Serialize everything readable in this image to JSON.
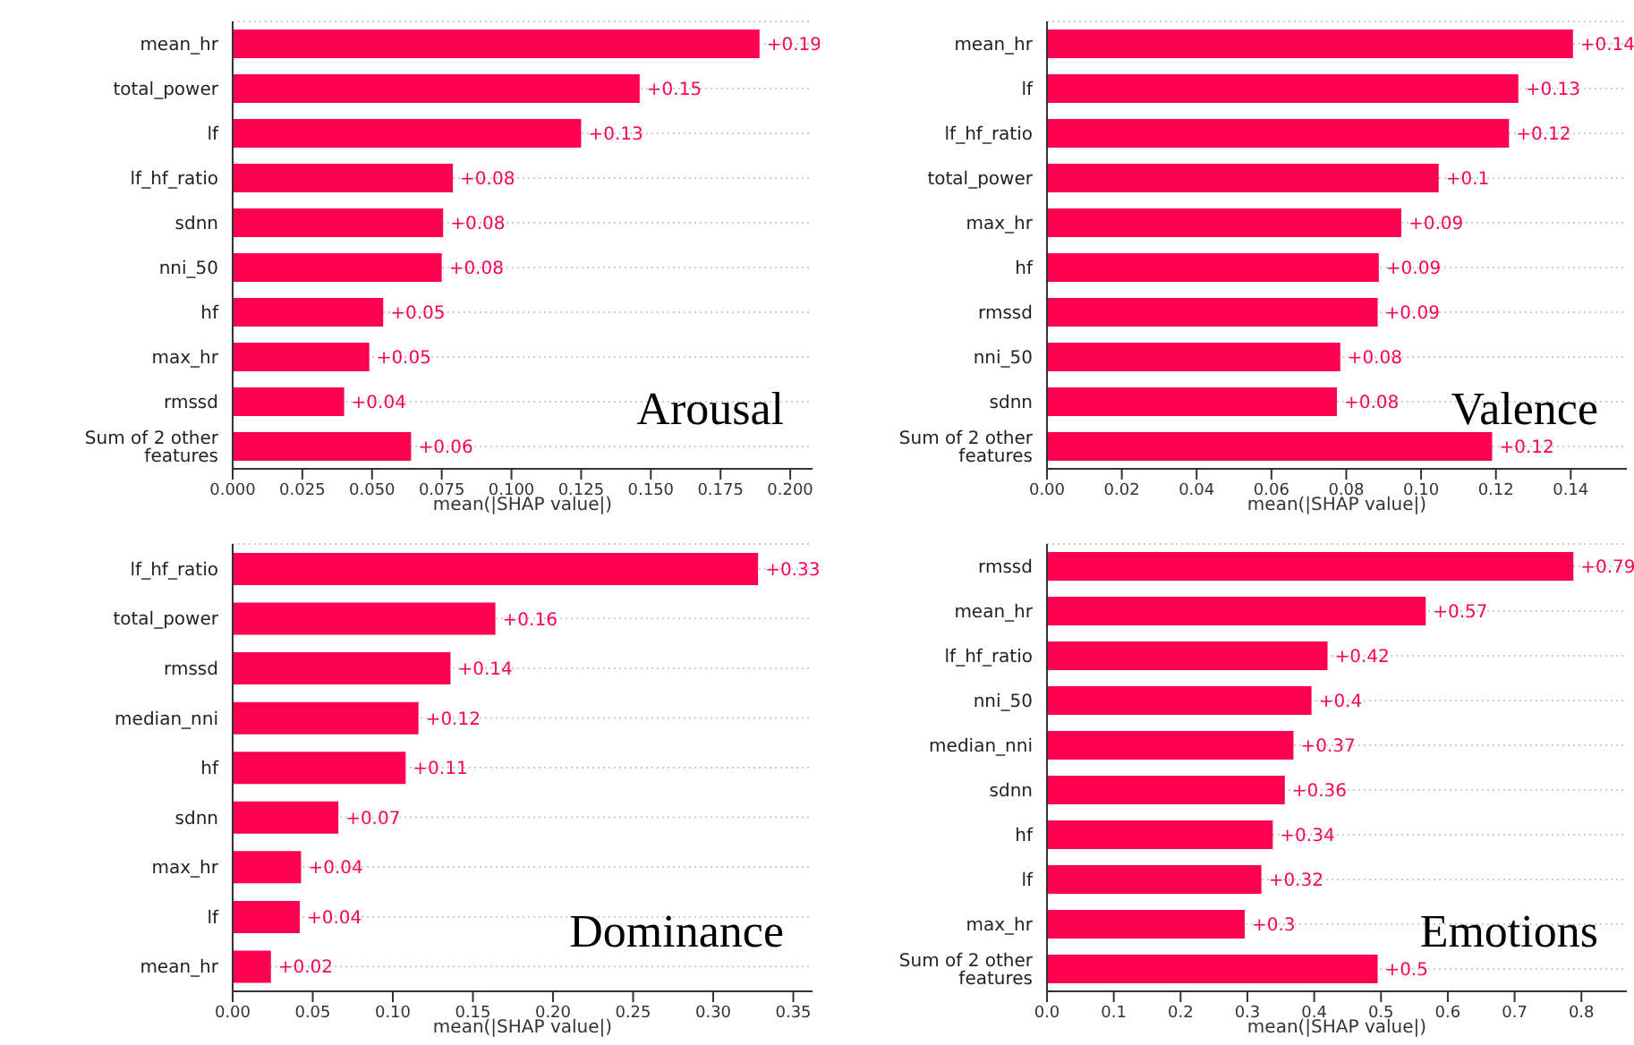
{
  "chart_data": [
    {
      "type": "bar",
      "orientation": "horizontal",
      "title": "Arousal",
      "xlabel": "mean(|SHAP value|)",
      "grid": "y",
      "categories": [
        "mean_hr",
        "total_power",
        "lf",
        "lf_hf_ratio",
        "sdnn",
        "nni_50",
        "hf",
        "max_hr",
        "rmssd",
        "Sum of 2 other features"
      ],
      "color": "#ff0051",
      "values": [
        0.189,
        0.146,
        0.125,
        0.079,
        0.0755,
        0.075,
        0.054,
        0.049,
        0.04,
        0.064
      ],
      "value_labels": [
        "+0.19",
        "+0.15",
        "+0.13",
        "+0.08",
        "+0.08",
        "+0.08",
        "+0.05",
        "+0.05",
        "+0.04",
        "+0.06"
      ],
      "xlim": [
        0,
        0.208
      ],
      "xticks": [
        {
          "value": 0,
          "label": "0.000"
        },
        {
          "value": 0.025,
          "label": "0.025"
        },
        {
          "value": 0.05,
          "label": "0.050"
        },
        {
          "value": 0.075,
          "label": "0.075"
        },
        {
          "value": 0.1,
          "label": "0.100"
        },
        {
          "value": 0.125,
          "label": "0.125"
        },
        {
          "value": 0.15,
          "label": "0.150"
        },
        {
          "value": 0.175,
          "label": "0.175"
        },
        {
          "value": 0.2,
          "label": "0.200"
        }
      ]
    },
    {
      "type": "bar",
      "orientation": "horizontal",
      "title": "Valence",
      "xlabel": "mean(|SHAP value|)",
      "grid": "y",
      "categories": [
        "mean_hr",
        "lf",
        "lf_hf_ratio",
        "total_power",
        "max_hr",
        "hf",
        "rmssd",
        "nni_50",
        "sdnn",
        "Sum of 2 other features"
      ],
      "color": "#ff0051",
      "values": [
        0.1406,
        0.126,
        0.1235,
        0.1047,
        0.0947,
        0.0887,
        0.0884,
        0.0784,
        0.0775,
        0.119
      ],
      "value_labels": [
        "+0.14",
        "+0.13",
        "+0.12",
        "+0.1",
        "+0.09",
        "+0.09",
        "+0.09",
        "+0.08",
        "+0.08",
        "+0.12"
      ],
      "xlim": [
        0,
        0.155
      ],
      "xticks": [
        {
          "value": 0,
          "label": "0.00"
        },
        {
          "value": 0.02,
          "label": "0.02"
        },
        {
          "value": 0.04,
          "label": "0.04"
        },
        {
          "value": 0.06,
          "label": "0.06"
        },
        {
          "value": 0.08,
          "label": "0.08"
        },
        {
          "value": 0.1,
          "label": "0.10"
        },
        {
          "value": 0.12,
          "label": "0.12"
        },
        {
          "value": 0.14,
          "label": "0.14"
        }
      ]
    },
    {
      "type": "bar",
      "orientation": "horizontal",
      "title": "Dominance",
      "xlabel": "mean(|SHAP value|)",
      "grid": "y",
      "categories": [
        "lf_hf_ratio",
        "total_power",
        "rmssd",
        "median_nni",
        "hf",
        "sdnn",
        "max_hr",
        "lf",
        "mean_hr"
      ],
      "color": "#ff0051",
      "values": [
        0.328,
        0.164,
        0.136,
        0.116,
        0.108,
        0.066,
        0.0427,
        0.0419,
        0.0239
      ],
      "value_labels": [
        "+0.33",
        "+0.16",
        "+0.14",
        "+0.12",
        "+0.11",
        "+0.07",
        "+0.04",
        "+0.04",
        "+0.02"
      ],
      "xlim": [
        0,
        0.362
      ],
      "xticks": [
        {
          "value": 0,
          "label": "0.00"
        },
        {
          "value": 0.05,
          "label": "0.05"
        },
        {
          "value": 0.1,
          "label": "0.10"
        },
        {
          "value": 0.15,
          "label": "0.15"
        },
        {
          "value": 0.2,
          "label": "0.20"
        },
        {
          "value": 0.25,
          "label": "0.25"
        },
        {
          "value": 0.3,
          "label": "0.30"
        },
        {
          "value": 0.35,
          "label": "0.35"
        }
      ]
    },
    {
      "type": "bar",
      "orientation": "horizontal",
      "title": "Emotions",
      "xlabel": "mean(|SHAP value|)",
      "grid": "y",
      "categories": [
        "rmssd",
        "mean_hr",
        "lf_hf_ratio",
        "nni_50",
        "median_nni",
        "sdnn",
        "hf",
        "lf",
        "max_hr",
        "Sum of 2 other features"
      ],
      "color": "#ff0051",
      "values": [
        0.788,
        0.567,
        0.42,
        0.396,
        0.369,
        0.356,
        0.338,
        0.321,
        0.296,
        0.495
      ],
      "value_labels": [
        "+0.79",
        "+0.57",
        "+0.42",
        "+0.4",
        "+0.37",
        "+0.36",
        "+0.34",
        "+0.32",
        "+0.3",
        "+0.5"
      ],
      "xlim": [
        0,
        0.868
      ],
      "xticks": [
        {
          "value": 0,
          "label": "0.0"
        },
        0.1,
        0.2,
        0.3,
        0.4,
        0.5,
        0.6,
        0.7,
        0.8
      ]
    }
  ]
}
